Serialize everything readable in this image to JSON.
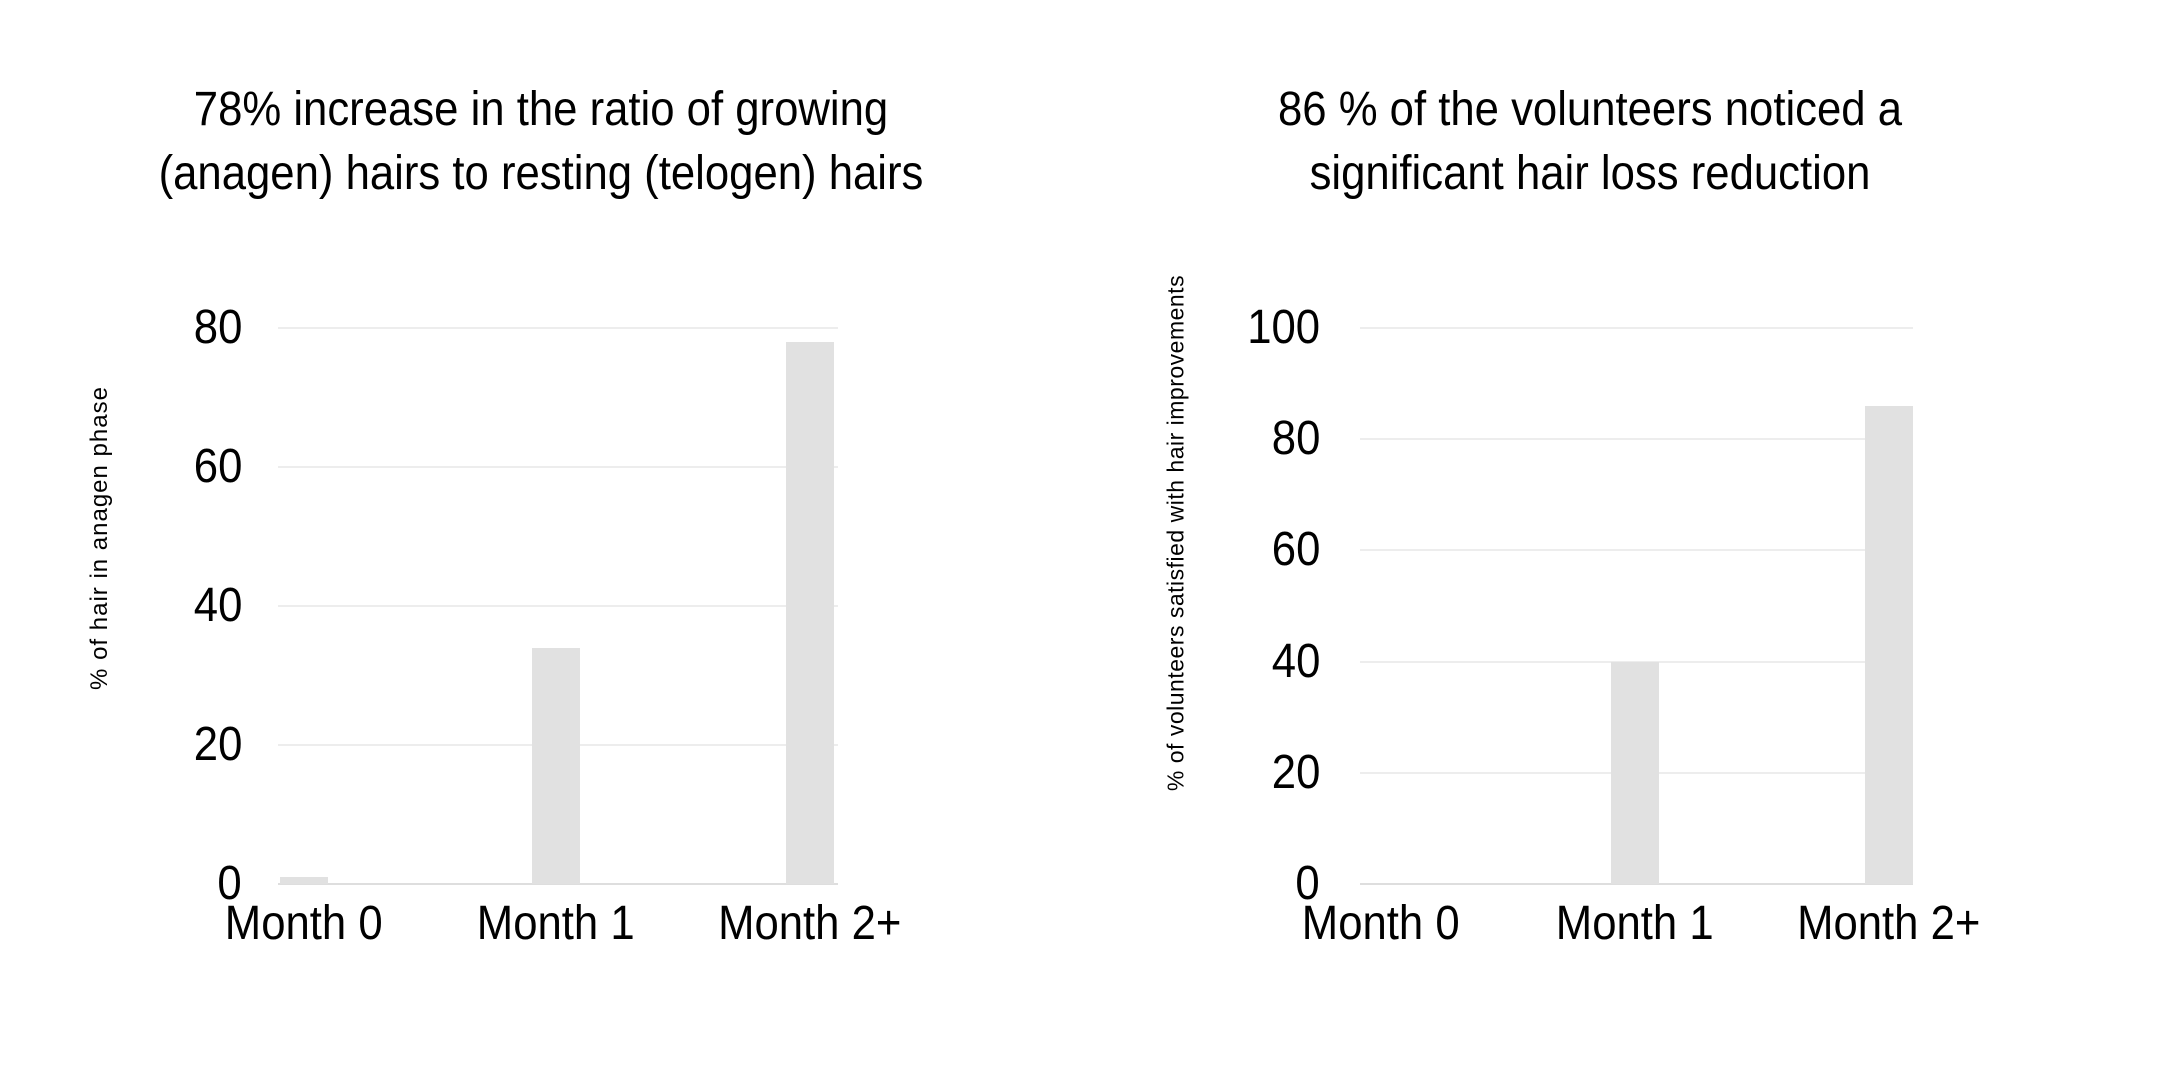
{
  "background": "#ffffff",
  "colors": {
    "bar": "#e1e1e1",
    "gridline": "#ededed",
    "baseline": "#dedede",
    "text": "#000000"
  },
  "chart_data": [
    {
      "type": "bar",
      "title": "78% increase in the ratio of growing (anagen) hairs to resting (telogen) hairs",
      "title_lines": [
        "78% increase in the ratio of growing",
        "(anagen) hairs to resting (telogen) hairs"
      ],
      "ylabel": "% of hair in anagen phase",
      "xlabel": "",
      "categories": [
        "Month 0",
        "Month 1",
        "Month 2+"
      ],
      "values": [
        1,
        34,
        78
      ],
      "yticks": [
        0,
        20,
        40,
        60,
        80
      ],
      "ylim": [
        0,
        80
      ],
      "grid": true,
      "legend": false
    },
    {
      "type": "bar",
      "title": "86 % of the volunteers noticed a significant hair loss reduction",
      "title_lines": [
        "86 % of the volunteers noticed a",
        "significant hair loss reduction"
      ],
      "ylabel": "% of volunteers satisfied with hair improvements",
      "xlabel": "",
      "categories": [
        "Month 0",
        "Month 1",
        "Month 2+"
      ],
      "values": [
        0,
        40,
        86
      ],
      "yticks": [
        0,
        20,
        40,
        60,
        80,
        100
      ],
      "ylim": [
        0,
        100
      ],
      "grid": true,
      "legend": false
    }
  ]
}
